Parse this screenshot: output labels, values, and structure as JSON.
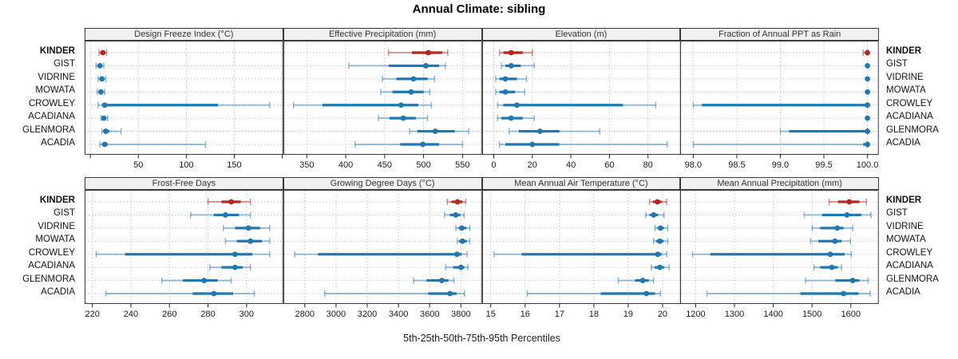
{
  "chart_data": {
    "type": "scatter",
    "subtype": "trellis-percentile-dotplot",
    "title": "Annual Climate: sibling",
    "xlabel": "5th-25th-50th-75th-95th Percentiles",
    "percentile_labels": [
      "5th",
      "25th",
      "50th",
      "75th",
      "95th"
    ],
    "stations": [
      "KINDER",
      "GIST",
      "VIDRINE",
      "MOWATA",
      "CROWLEY",
      "ACADIANA",
      "GLENMORA",
      "ACADIA"
    ],
    "highlight_station": "KINDER",
    "colors": {
      "highlight": "#B4271E",
      "normal": "#1F77B4",
      "grid": "#C4C4C4",
      "border": "#3a3a3a",
      "strip_bg": "#f0f0f0"
    },
    "legend_position": "none",
    "grid": "dotted",
    "panels": [
      {
        "title": "Design Freeze Index (°C)",
        "xlim": [
          -6,
          201
        ],
        "ticks": [
          50,
          100,
          150
        ],
        "grid_extra": [
          0,
          200
        ],
        "tick_decimals": 0,
        "series": [
          [
            9,
            11,
            13,
            15,
            17
          ],
          [
            6,
            8,
            10,
            12,
            14
          ],
          [
            8,
            10,
            12,
            14,
            16
          ],
          [
            7,
            9,
            11,
            13,
            15
          ],
          [
            8,
            12,
            15,
            133,
            187
          ],
          [
            11,
            13,
            14,
            16,
            18
          ],
          [
            12,
            14,
            16,
            20,
            32
          ],
          [
            10,
            12,
            15,
            18,
            120
          ]
        ]
      },
      {
        "title": "Effective Precipitation (mm)",
        "xlim": [
          320,
          575
        ],
        "ticks": [
          350,
          400,
          450,
          500,
          550
        ],
        "grid_extra": [],
        "tick_decimals": 0,
        "series": [
          [
            455,
            485,
            506,
            524,
            531
          ],
          [
            404,
            455,
            503,
            520,
            528
          ],
          [
            447,
            465,
            487,
            505,
            514
          ],
          [
            445,
            460,
            484,
            500,
            508
          ],
          [
            333,
            370,
            471,
            493,
            510
          ],
          [
            442,
            456,
            474,
            490,
            505
          ],
          [
            482,
            492,
            515,
            540,
            558
          ],
          [
            412,
            470,
            499,
            520,
            550
          ]
        ]
      },
      {
        "title": "Elevation (m)",
        "xlim": [
          -6,
          97
        ],
        "ticks": [
          0,
          20,
          40,
          60,
          80
        ],
        "grid_extra": [],
        "tick_decimals": 0,
        "series": [
          [
            3,
            5,
            9,
            15,
            20
          ],
          [
            4,
            6,
            9,
            14,
            21
          ],
          [
            1,
            3,
            6,
            12,
            17
          ],
          [
            1,
            3,
            6,
            11,
            16
          ],
          [
            2,
            5,
            12,
            67,
            84
          ],
          [
            2,
            4,
            9,
            15,
            21
          ],
          [
            8,
            13,
            24,
            34,
            55
          ],
          [
            3,
            6,
            20,
            34,
            90
          ]
        ]
      },
      {
        "title": "Fraction of Annual PPT as Rain",
        "xlim": [
          97.85,
          100.13
        ],
        "ticks": [
          98.0,
          98.5,
          99.0,
          99.5,
          100.0
        ],
        "grid_extra": [],
        "tick_decimals": 1,
        "series": [
          [
            99.95,
            100,
            100,
            100,
            100
          ],
          [
            100,
            100,
            100,
            100,
            100
          ],
          [
            100,
            100,
            100,
            100,
            100
          ],
          [
            100,
            100,
            100,
            100,
            100
          ],
          [
            98.0,
            98.1,
            100,
            100,
            100
          ],
          [
            100,
            100,
            100,
            100,
            100
          ],
          [
            99.0,
            99.1,
            100,
            100,
            100
          ],
          [
            98.0,
            99.95,
            100,
            100,
            100
          ]
        ]
      },
      {
        "title": "Frost-Free Days",
        "xlim": [
          216,
          319
        ],
        "ticks": [
          220,
          240,
          260,
          280,
          300
        ],
        "grid_extra": [],
        "tick_decimals": 0,
        "series": [
          [
            280,
            287,
            292,
            297,
            302
          ],
          [
            271,
            283,
            289,
            296,
            302
          ],
          [
            288,
            294,
            301,
            307,
            312
          ],
          [
            289,
            295,
            302,
            308,
            312
          ],
          [
            222,
            237,
            294,
            303,
            312
          ],
          [
            281,
            287,
            294,
            298,
            302
          ],
          [
            256,
            267,
            278,
            285,
            292
          ],
          [
            227,
            272,
            283,
            293,
            304
          ]
        ]
      },
      {
        "title": "Growing Degree Days (°C)",
        "xlim": [
          2663,
          3935
        ],
        "ticks": [
          2800,
          3000,
          3200,
          3400,
          3600,
          3800
        ],
        "grid_extra": [],
        "tick_decimals": 0,
        "series": [
          [
            3712,
            3740,
            3778,
            3810,
            3831
          ],
          [
            3695,
            3730,
            3767,
            3795,
            3820
          ],
          [
            3768,
            3785,
            3806,
            3835,
            3857
          ],
          [
            3777,
            3788,
            3810,
            3838,
            3857
          ],
          [
            2735,
            2885,
            3775,
            3805,
            3840
          ],
          [
            3703,
            3750,
            3800,
            3822,
            3845
          ],
          [
            3496,
            3580,
            3678,
            3720,
            3755
          ],
          [
            2928,
            3590,
            3730,
            3772,
            3823
          ]
        ]
      },
      {
        "title": "Mean Annual Air Temperature (°C)",
        "xlim": [
          14.75,
          20.53
        ],
        "ticks": [
          15,
          16,
          17,
          18,
          19,
          20
        ],
        "grid_extra": [],
        "tick_decimals": 0,
        "series": [
          [
            19.62,
            19.72,
            19.85,
            19.97,
            20.12
          ],
          [
            19.51,
            19.62,
            19.74,
            19.87,
            20.04
          ],
          [
            19.78,
            19.85,
            19.94,
            20.04,
            20.15
          ],
          [
            19.74,
            19.81,
            19.92,
            20.03,
            20.15
          ],
          [
            15.1,
            15.9,
            19.86,
            19.97,
            20.12
          ],
          [
            19.67,
            19.77,
            19.92,
            20.05,
            20.19
          ],
          [
            18.71,
            19.2,
            19.42,
            19.6,
            19.74
          ],
          [
            16.06,
            18.2,
            19.53,
            19.78,
            19.94
          ]
        ]
      },
      {
        "title": "Mean Annual Precipitation (mm)",
        "xlim": [
          1160,
          1672
        ],
        "ticks": [
          1200,
          1300,
          1400,
          1500,
          1600
        ],
        "grid_extra": [],
        "tick_decimals": 0,
        "series": [
          [
            1544,
            1567,
            1596,
            1622,
            1640
          ],
          [
            1480,
            1526,
            1590,
            1627,
            1652
          ],
          [
            1500,
            1521,
            1565,
            1581,
            1605
          ],
          [
            1496,
            1516,
            1559,
            1576,
            1599
          ],
          [
            1192,
            1238,
            1547,
            1584,
            1601
          ],
          [
            1505,
            1521,
            1551,
            1566,
            1576
          ],
          [
            1483,
            1560,
            1605,
            1622,
            1645
          ],
          [
            1229,
            1470,
            1581,
            1620,
            1650
          ]
        ]
      }
    ]
  }
}
